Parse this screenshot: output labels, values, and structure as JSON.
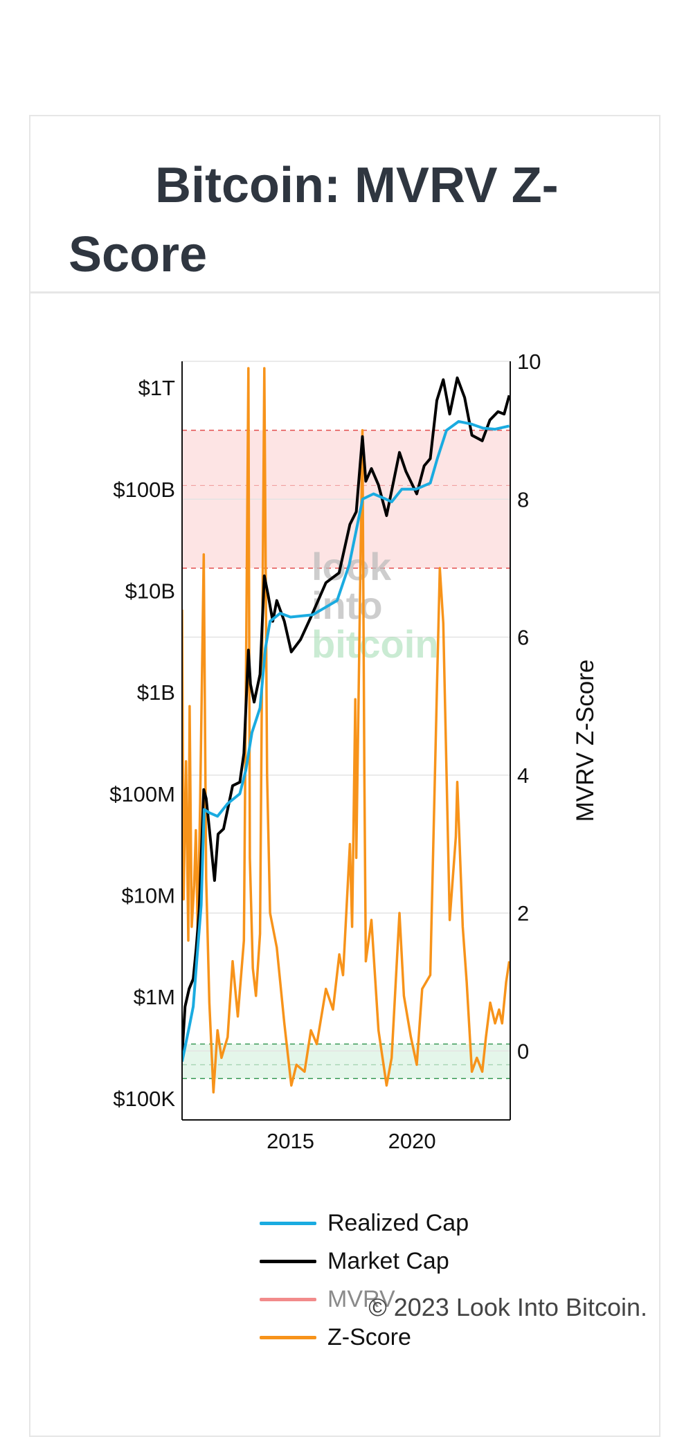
{
  "page": {
    "title": "Bitcoin: MVRV Z-Score",
    "copyright": "© 2023 Look Into Bitcoin."
  },
  "watermark": {
    "line1": "look",
    "line2": "into",
    "line3": "bitcoin"
  },
  "colors": {
    "realized_cap": "#1aabe0",
    "market_cap": "#000000",
    "mvrv": "#f28b8b",
    "zscore": "#f7931a",
    "red_band": "#fde4e4",
    "green_band": "#e4f6ea",
    "red_line": "#e24d4d",
    "green_line": "#3a9a55"
  },
  "chart_data": {
    "type": "line",
    "x_axis": {
      "ticks": [
        "2015",
        "2020"
      ],
      "range": [
        "2010-07-18",
        "2024-01-15"
      ]
    },
    "y_axis_left": {
      "scale": "log",
      "ticks": [
        {
          "label": "$100K",
          "value": 100000
        },
        {
          "label": "$1M",
          "value": 1000000
        },
        {
          "label": "$10M",
          "value": 10000000
        },
        {
          "label": "$100M",
          "value": 100000000
        },
        {
          "label": "$1B",
          "value": 1000000000
        },
        {
          "label": "$10B",
          "value": 10000000000
        },
        {
          "label": "$100B",
          "value": 100000000000
        },
        {
          "label": "$1T",
          "value": 1000000000000
        }
      ]
    },
    "y_axis_right": {
      "label": "MVRV Z-Score",
      "range": [
        -1,
        10
      ],
      "ticks": [
        "0",
        "2",
        "4",
        "6",
        "8",
        "10"
      ]
    },
    "bands": [
      {
        "zone": "red",
        "from": 7,
        "to": 9,
        "midline": 8.2
      },
      {
        "zone": "green",
        "from": -0.4,
        "to": 0.1,
        "midline": -0.2
      }
    ],
    "grid": true,
    "legend_position": "bottom",
    "legend": [
      {
        "name": "Realized Cap",
        "visible": true
      },
      {
        "name": "Market Cap",
        "visible": true
      },
      {
        "name": "MVRV",
        "visible": false
      },
      {
        "name": "Z-Score",
        "visible": true
      }
    ],
    "series": [
      {
        "name": "Market Cap",
        "axis": "left",
        "points": [
          [
            "2010-07-18",
            270000
          ],
          [
            "2010-09-01",
            800000
          ],
          [
            "2010-11-01",
            1200000
          ],
          [
            "2011-01-01",
            1500000
          ],
          [
            "2011-02-15",
            3000000
          ],
          [
            "2011-04-01",
            7000000
          ],
          [
            "2011-06-08",
            110000000
          ],
          [
            "2011-07-15",
            90000000
          ],
          [
            "2011-09-01",
            45000000
          ],
          [
            "2011-11-18",
            14000000
          ],
          [
            "2012-01-10",
            40000000
          ],
          [
            "2012-04-01",
            45000000
          ],
          [
            "2012-08-15",
            120000000
          ],
          [
            "2012-12-01",
            130000000
          ],
          [
            "2013-02-01",
            250000000
          ],
          [
            "2013-04-09",
            2600000000
          ],
          [
            "2013-05-10",
            1200000000
          ],
          [
            "2013-07-05",
            800000000
          ],
          [
            "2013-10-01",
            1500000000
          ],
          [
            "2013-12-04",
            14000000000
          ],
          [
            "2014-02-01",
            9000000000
          ],
          [
            "2014-04-10",
            5000000000
          ],
          [
            "2014-06-10",
            8000000000
          ],
          [
            "2014-10-01",
            5000000000
          ],
          [
            "2015-01-14",
            2500000000
          ],
          [
            "2015-06-01",
            3300000000
          ],
          [
            "2015-11-04",
            5500000000
          ],
          [
            "2016-06-17",
            12000000000
          ],
          [
            "2016-12-31",
            15000000000
          ],
          [
            "2017-06-12",
            45000000000
          ],
          [
            "2017-09-15",
            60000000000
          ],
          [
            "2017-12-17",
            330000000000
          ],
          [
            "2018-02-06",
            120000000000
          ],
          [
            "2018-05-01",
            160000000000
          ],
          [
            "2018-08-15",
            110000000000
          ],
          [
            "2018-12-15",
            55000000000
          ],
          [
            "2019-06-26",
            230000000000
          ],
          [
            "2019-10-01",
            150000000000
          ],
          [
            "2020-03-12",
            90000000000
          ],
          [
            "2020-07-01",
            170000000000
          ],
          [
            "2020-10-01",
            200000000000
          ],
          [
            "2021-01-08",
            750000000000
          ],
          [
            "2021-04-14",
            1200000000000
          ],
          [
            "2021-07-20",
            550000000000
          ],
          [
            "2021-11-10",
            1250000000000
          ],
          [
            "2022-03-01",
            800000000000
          ],
          [
            "2022-06-18",
            340000000000
          ],
          [
            "2022-11-21",
            300000000000
          ],
          [
            "2023-03-15",
            480000000000
          ],
          [
            "2023-07-15",
            580000000000
          ],
          [
            "2023-10-15",
            550000000000
          ],
          [
            "2023-12-31",
            840000000000
          ]
        ]
      },
      {
        "name": "Realized Cap",
        "axis": "left",
        "points": [
          [
            "2010-07-18",
            230000
          ],
          [
            "2010-11-01",
            500000
          ],
          [
            "2011-01-01",
            800000
          ],
          [
            "2011-03-01",
            2500000
          ],
          [
            "2011-05-01",
            8000000
          ],
          [
            "2011-06-15",
            70000000
          ],
          [
            "2011-09-01",
            65000000
          ],
          [
            "2012-01-01",
            60000000
          ],
          [
            "2012-06-01",
            80000000
          ],
          [
            "2012-12-01",
            100000000
          ],
          [
            "2013-03-01",
            170000000
          ],
          [
            "2013-06-01",
            400000000
          ],
          [
            "2013-10-01",
            700000000
          ],
          [
            "2013-12-20",
            2700000000
          ],
          [
            "2014-03-01",
            5000000000
          ],
          [
            "2014-08-01",
            6000000000
          ],
          [
            "2015-01-01",
            5500000000
          ],
          [
            "2015-12-01",
            5800000000
          ],
          [
            "2016-12-01",
            8000000000
          ],
          [
            "2017-06-01",
            18000000000
          ],
          [
            "2017-12-20",
            80000000000
          ],
          [
            "2018-06-01",
            90000000000
          ],
          [
            "2018-12-01",
            80000000000
          ],
          [
            "2019-03-01",
            75000000000
          ],
          [
            "2019-08-01",
            100000000000
          ],
          [
            "2020-03-01",
            100000000000
          ],
          [
            "2020-10-01",
            115000000000
          ],
          [
            "2021-01-15",
            200000000000
          ],
          [
            "2021-06-01",
            380000000000
          ],
          [
            "2021-12-01",
            465000000000
          ],
          [
            "2022-06-01",
            440000000000
          ],
          [
            "2022-12-01",
            400000000000
          ],
          [
            "2023-06-01",
            390000000000
          ],
          [
            "2023-12-31",
            420000000000
          ]
        ]
      },
      {
        "name": "Z-Score",
        "axis": "right",
        "points": [
          [
            "2010-07-18",
            6.4
          ],
          [
            "2010-08-10",
            2.2
          ],
          [
            "2010-09-15",
            4.2
          ],
          [
            "2010-10-20",
            1.6
          ],
          [
            "2010-11-08",
            5.0
          ],
          [
            "2010-12-10",
            1.8
          ],
          [
            "2011-01-15",
            2.4
          ],
          [
            "2011-02-10",
            3.2
          ],
          [
            "2011-03-10",
            1.7
          ],
          [
            "2011-04-15",
            3.6
          ],
          [
            "2011-06-08",
            7.2
          ],
          [
            "2011-07-15",
            2.5
          ],
          [
            "2011-09-01",
            0.7
          ],
          [
            "2011-11-01",
            -0.6
          ],
          [
            "2012-01-01",
            0.3
          ],
          [
            "2012-03-01",
            -0.1
          ],
          [
            "2012-06-01",
            0.2
          ],
          [
            "2012-08-15",
            1.3
          ],
          [
            "2012-11-01",
            0.5
          ],
          [
            "2013-02-01",
            1.6
          ],
          [
            "2013-04-09",
            9.9
          ],
          [
            "2013-05-01",
            2.8
          ],
          [
            "2013-06-15",
            1.2
          ],
          [
            "2013-08-01",
            0.8
          ],
          [
            "2013-10-01",
            1.7
          ],
          [
            "2013-12-04",
            9.9
          ],
          [
            "2014-01-15",
            4.0
          ],
          [
            "2014-03-01",
            2.0
          ],
          [
            "2014-06-10",
            1.5
          ],
          [
            "2014-10-01",
            0.4
          ],
          [
            "2015-01-14",
            -0.5
          ],
          [
            "2015-04-01",
            -0.2
          ],
          [
            "2015-08-01",
            -0.3
          ],
          [
            "2015-11-04",
            0.3
          ],
          [
            "2016-02-01",
            0.1
          ],
          [
            "2016-06-17",
            0.9
          ],
          [
            "2016-10-01",
            0.6
          ],
          [
            "2017-01-04",
            1.4
          ],
          [
            "2017-03-01",
            1.1
          ],
          [
            "2017-06-12",
            3.0
          ],
          [
            "2017-07-15",
            1.8
          ],
          [
            "2017-09-01",
            5.1
          ],
          [
            "2017-09-15",
            2.8
          ],
          [
            "2017-12-17",
            9.0
          ],
          [
            "2018-01-15",
            4.0
          ],
          [
            "2018-02-06",
            1.3
          ],
          [
            "2018-05-01",
            1.9
          ],
          [
            "2018-08-15",
            0.3
          ],
          [
            "2018-12-15",
            -0.5
          ],
          [
            "2019-03-01",
            -0.1
          ],
          [
            "2019-06-26",
            2.0
          ],
          [
            "2019-09-01",
            0.8
          ],
          [
            "2019-12-15",
            0.2
          ],
          [
            "2020-03-12",
            -0.2
          ],
          [
            "2020-06-01",
            0.9
          ],
          [
            "2020-10-01",
            1.1
          ],
          [
            "2021-01-08",
            5.2
          ],
          [
            "2021-02-21",
            7.0
          ],
          [
            "2021-04-14",
            6.2
          ],
          [
            "2021-07-20",
            1.9
          ],
          [
            "2021-10-20",
            3.1
          ],
          [
            "2021-11-10",
            3.9
          ],
          [
            "2022-02-01",
            1.8
          ],
          [
            "2022-04-01",
            1.0
          ],
          [
            "2022-06-18",
            -0.3
          ],
          [
            "2022-09-01",
            -0.1
          ],
          [
            "2022-11-21",
            -0.3
          ],
          [
            "2023-01-15",
            0.2
          ],
          [
            "2023-03-20",
            0.7
          ],
          [
            "2023-06-01",
            0.4
          ],
          [
            "2023-08-01",
            0.6
          ],
          [
            "2023-09-15",
            0.4
          ],
          [
            "2023-11-15",
            1.0
          ],
          [
            "2023-12-31",
            1.3
          ]
        ]
      }
    ]
  }
}
